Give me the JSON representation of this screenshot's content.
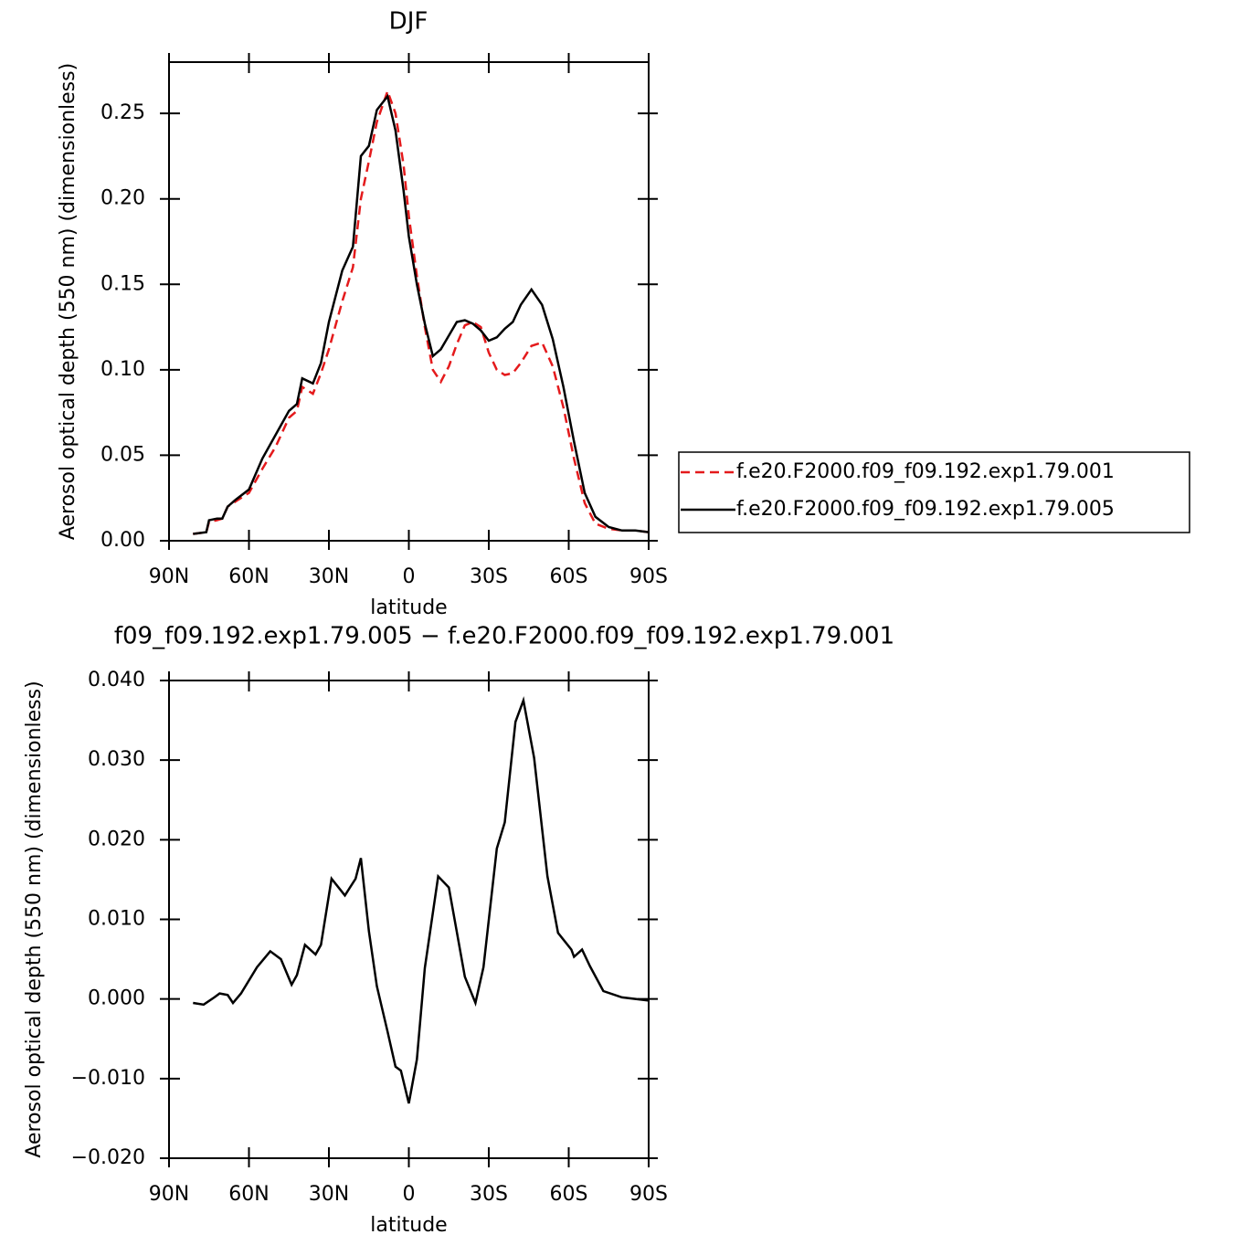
{
  "chart_data": [
    {
      "type": "line",
      "title": "DJF",
      "xlabel": "latitude",
      "ylabel": "Aerosol optical depth (550 nm) (dimensionless)",
      "x": [
        81,
        76,
        75,
        72,
        70,
        68,
        65,
        60,
        55,
        50,
        45,
        42,
        40,
        36,
        33,
        30,
        25,
        21,
        18,
        15,
        12,
        8,
        5,
        2,
        0,
        -3,
        -6,
        -9,
        -12,
        -15,
        -18,
        -21,
        -24,
        -27,
        -30,
        -33,
        -36,
        -39,
        -42,
        -46,
        -50,
        -54,
        -58,
        -62,
        -66,
        -70,
        -75,
        -80,
        -85,
        -90
      ],
      "series": [
        {
          "name": "f.e20.F2000.f09_f09.192.exp1.79.001",
          "color": "#e41a1c",
          "style": "dashed",
          "values": [
            0.004,
            0.005,
            0.011,
            0.012,
            0.013,
            0.02,
            0.023,
            0.028,
            0.042,
            0.055,
            0.072,
            0.076,
            0.09,
            0.086,
            0.098,
            0.112,
            0.14,
            0.16,
            0.2,
            0.222,
            0.245,
            0.263,
            0.25,
            0.22,
            0.19,
            0.155,
            0.125,
            0.1,
            0.093,
            0.102,
            0.115,
            0.126,
            0.128,
            0.125,
            0.11,
            0.1,
            0.097,
            0.098,
            0.104,
            0.114,
            0.116,
            0.102,
            0.078,
            0.048,
            0.022,
            0.01,
            0.007,
            0.006,
            0.006,
            0.005
          ]
        },
        {
          "name": "f.e20.F2000.f09_f09.192.exp1.79.005",
          "color": "#000000",
          "style": "solid",
          "values": [
            0.004,
            0.005,
            0.012,
            0.013,
            0.013,
            0.02,
            0.024,
            0.03,
            0.048,
            0.062,
            0.076,
            0.08,
            0.095,
            0.092,
            0.104,
            0.128,
            0.158,
            0.172,
            0.225,
            0.231,
            0.252,
            0.26,
            0.24,
            0.205,
            0.178,
            0.15,
            0.127,
            0.108,
            0.112,
            0.12,
            0.128,
            0.129,
            0.127,
            0.123,
            0.117,
            0.119,
            0.124,
            0.128,
            0.138,
            0.147,
            0.138,
            0.118,
            0.09,
            0.058,
            0.028,
            0.014,
            0.008,
            0.006,
            0.006,
            0.005
          ]
        }
      ],
      "xlim": [
        90,
        -90
      ],
      "xticks": [
        {
          "value": 90,
          "label": "90N"
        },
        {
          "value": 60,
          "label": "60N"
        },
        {
          "value": 30,
          "label": "30N"
        },
        0,
        {
          "value": -30,
          "label": "30S"
        },
        {
          "value": -60,
          "label": "60S"
        },
        {
          "value": -90,
          "label": "90S"
        }
      ],
      "ylim": [
        0,
        0.28
      ],
      "yticks": [
        {
          "value": 0,
          "label": "0.00"
        },
        0.05,
        {
          "value": 0.1,
          "label": "0.10"
        },
        0.15,
        {
          "value": 0.2,
          "label": "0.20"
        },
        0.25
      ],
      "legend": "outside-right"
    },
    {
      "type": "line",
      "title": "f09_f09.192.exp1.79.005 − f.e20.F2000.f09_f09.192.exp1.79.001",
      "xlabel": "latitude",
      "ylabel": "Aerosol optical depth (550 nm) (dimensionless)",
      "x": [
        81,
        77,
        73,
        71,
        68,
        66,
        63,
        57,
        52,
        48,
        44,
        42,
        39,
        35,
        33,
        29,
        24,
        20,
        18,
        15,
        12,
        8,
        5,
        3,
        0,
        -3,
        -6,
        -11,
        -15,
        -21,
        -25,
        -28,
        -33,
        -36,
        -40,
        -43,
        -47,
        -52,
        -56,
        -61,
        -62,
        -65,
        -68,
        -73,
        -80,
        -90
      ],
      "values": [
        -0.0005,
        -0.0007,
        0.0002,
        0.0007,
        0.0005,
        -0.0005,
        0.0007,
        0.004,
        0.006,
        0.005,
        0.0018,
        0.003,
        0.0068,
        0.0056,
        0.0068,
        0.0151,
        0.013,
        0.0151,
        0.0177,
        0.0085,
        0.0016,
        -0.0041,
        -0.0085,
        -0.009,
        -0.0131,
        -0.0076,
        0.0039,
        0.0154,
        0.014,
        0.0028,
        -0.0005,
        0.004,
        0.0189,
        0.0222,
        0.0348,
        0.0375,
        0.0303,
        0.0154,
        0.0083,
        0.0062,
        0.0053,
        0.0062,
        0.0041,
        0.001,
        0.0002,
        -0.0002
      ],
      "color": "#000000",
      "style": "solid",
      "xlim": [
        90,
        -90
      ],
      "xticks": [
        {
          "value": 90,
          "label": "90N"
        },
        {
          "value": 60,
          "label": "60N"
        },
        {
          "value": 30,
          "label": "30N"
        },
        0,
        {
          "value": -30,
          "label": "30S"
        },
        {
          "value": -60,
          "label": "60S"
        },
        {
          "value": -90,
          "label": "90S"
        }
      ],
      "ylim": [
        -0.02,
        0.04
      ],
      "yticks": [
        {
          "value": -0.02,
          "label": "−0.020"
        },
        {
          "value": -0.01,
          "label": "−0.010"
        },
        {
          "value": 0,
          "label": "0.000"
        },
        {
          "value": 0.01,
          "label": "0.010"
        },
        {
          "value": 0.02,
          "label": "0.020"
        },
        {
          "value": 0.03,
          "label": "0.030"
        },
        {
          "value": 0.04,
          "label": "0.040"
        }
      ]
    }
  ]
}
